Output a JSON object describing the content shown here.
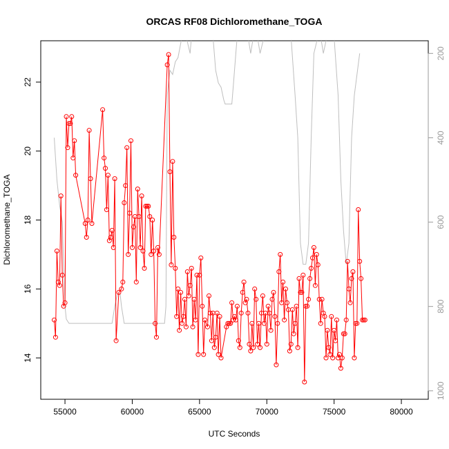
{
  "chart_data": {
    "type": "line",
    "title": "ORCAS RF08 Dichloromethane_TOGA",
    "xlabel": "UTC Seconds",
    "ylabel": "Dichloromethane_TOGA",
    "xlim": [
      53200,
      82000
    ],
    "ylim": [
      12.8,
      23.2
    ],
    "xticks": [
      55000,
      60000,
      65000,
      70000,
      75000,
      80000
    ],
    "yticks": [
      14,
      16,
      18,
      20,
      22
    ],
    "y2lim": [
      1020,
      170
    ],
    "y2ticks": [
      200,
      400,
      600,
      800,
      1000
    ],
    "grid": false,
    "colors": {
      "primary": "#ff0000",
      "secondary": "#bebebe"
    },
    "series": [
      {
        "style": "line+points",
        "color": "#ff0000",
        "points": [
          [
            54200,
            15.1
          ],
          [
            54300,
            14.6
          ],
          [
            54400,
            17.1
          ],
          [
            54500,
            16.2
          ],
          [
            54600,
            16.1
          ],
          [
            54700,
            18.7
          ],
          [
            54800,
            16.4
          ],
          [
            54900,
            15.5
          ],
          [
            55000,
            15.6
          ],
          [
            55100,
            21.0
          ],
          [
            55200,
            20.1
          ],
          [
            55300,
            20.8
          ],
          [
            55400,
            20.8
          ],
          [
            55500,
            21.0
          ],
          [
            55600,
            19.8
          ],
          [
            55700,
            20.3
          ],
          [
            55800,
            19.3
          ],
          [
            56500,
            17.9
          ],
          [
            56600,
            17.5
          ],
          [
            56700,
            18.0
          ],
          [
            56800,
            20.6
          ],
          [
            56900,
            19.2
          ],
          [
            57000,
            17.9
          ],
          [
            57800,
            21.2
          ],
          [
            57900,
            19.8
          ],
          [
            58000,
            19.5
          ],
          [
            58100,
            18.3
          ],
          [
            58200,
            19.3
          ],
          [
            58300,
            17.4
          ],
          [
            58400,
            17.5
          ],
          [
            58500,
            17.7
          ],
          [
            58600,
            17.2
          ],
          [
            58700,
            19.2
          ],
          [
            58800,
            14.5
          ],
          [
            59000,
            15.9
          ],
          [
            59200,
            16.0
          ],
          [
            59300,
            16.2
          ],
          [
            59400,
            18.5
          ],
          [
            59500,
            19.0
          ],
          [
            59600,
            20.1
          ],
          [
            59700,
            17.0
          ],
          [
            59800,
            18.2
          ],
          [
            59900,
            20.3
          ],
          [
            60000,
            17.2
          ],
          [
            60100,
            17.8
          ],
          [
            60200,
            18.1
          ],
          [
            60300,
            16.2
          ],
          [
            60400,
            18.9
          ],
          [
            60500,
            18.1
          ],
          [
            60600,
            17.2
          ],
          [
            60700,
            18.7
          ],
          [
            60800,
            17.1
          ],
          [
            60900,
            16.6
          ],
          [
            61000,
            18.4
          ],
          [
            61100,
            18.4
          ],
          [
            61200,
            18.4
          ],
          [
            61300,
            18.1
          ],
          [
            61400,
            17.0
          ],
          [
            61500,
            18.0
          ],
          [
            61600,
            17.1
          ],
          [
            61700,
            15.0
          ],
          [
            61800,
            14.6
          ],
          [
            61900,
            17.2
          ],
          [
            62000,
            17.0
          ],
          [
            62600,
            22.5
          ],
          [
            62700,
            22.8
          ],
          [
            62800,
            19.4
          ],
          [
            62900,
            16.7
          ],
          [
            63000,
            19.7
          ],
          [
            63100,
            17.5
          ],
          [
            63200,
            16.6
          ],
          [
            63300,
            15.2
          ],
          [
            63400,
            16.0
          ],
          [
            63500,
            14.8
          ],
          [
            63600,
            15.9
          ],
          [
            63700,
            15.0
          ],
          [
            63800,
            15.2
          ],
          [
            63900,
            15.7
          ],
          [
            64000,
            14.9
          ],
          [
            64100,
            16.5
          ],
          [
            64200,
            15.8
          ],
          [
            64300,
            16.1
          ],
          [
            64400,
            16.6
          ],
          [
            64500,
            14.9
          ],
          [
            64600,
            15.7
          ],
          [
            64700,
            15.1
          ],
          [
            64800,
            16.4
          ],
          [
            64900,
            14.1
          ],
          [
            65000,
            16.4
          ],
          [
            65100,
            16.9
          ],
          [
            65200,
            15.5
          ],
          [
            65300,
            14.1
          ],
          [
            65400,
            15.1
          ],
          [
            65600,
            14.9
          ],
          [
            65700,
            15.8
          ],
          [
            65800,
            15.3
          ],
          [
            65900,
            14.5
          ],
          [
            66000,
            15.3
          ],
          [
            66100,
            14.3
          ],
          [
            66200,
            14.6
          ],
          [
            66300,
            15.3
          ],
          [
            66400,
            14.1
          ],
          [
            66500,
            15.2
          ],
          [
            66600,
            14.0
          ],
          [
            67000,
            14.9
          ],
          [
            67100,
            15.0
          ],
          [
            67200,
            15.0
          ],
          [
            67300,
            15.0
          ],
          [
            67400,
            15.6
          ],
          [
            67500,
            15.1
          ],
          [
            67600,
            15.2
          ],
          [
            67700,
            15.1
          ],
          [
            67800,
            15.5
          ],
          [
            67900,
            14.5
          ],
          [
            68000,
            14.3
          ],
          [
            68100,
            15.3
          ],
          [
            68200,
            15.9
          ],
          [
            68300,
            16.2
          ],
          [
            68400,
            15.6
          ],
          [
            68500,
            15.7
          ],
          [
            68600,
            15.3
          ],
          [
            68700,
            14.4
          ],
          [
            68800,
            14.2
          ],
          [
            68900,
            15.0
          ],
          [
            69000,
            14.3
          ],
          [
            69100,
            16.0
          ],
          [
            69200,
            15.7
          ],
          [
            69300,
            14.4
          ],
          [
            69400,
            15.0
          ],
          [
            69500,
            14.3
          ],
          [
            69600,
            15.3
          ],
          [
            69700,
            15.8
          ],
          [
            69800,
            15.0
          ],
          [
            69900,
            15.3
          ],
          [
            70000,
            14.4
          ],
          [
            70100,
            15.5
          ],
          [
            70200,
            15.3
          ],
          [
            70300,
            14.8
          ],
          [
            70400,
            15.7
          ],
          [
            70500,
            15.9
          ],
          [
            70600,
            15.2
          ],
          [
            70700,
            13.8
          ],
          [
            70800,
            15.0
          ],
          [
            70900,
            16.5
          ],
          [
            71000,
            17.0
          ],
          [
            71100,
            15.6
          ],
          [
            71200,
            16.2
          ],
          [
            71300,
            15.1
          ],
          [
            71400,
            16.0
          ],
          [
            71500,
            15.6
          ],
          [
            71600,
            15.4
          ],
          [
            71700,
            14.2
          ],
          [
            71800,
            14.4
          ],
          [
            71900,
            15.4
          ],
          [
            72000,
            14.7
          ],
          [
            72100,
            15.0
          ],
          [
            72200,
            15.5
          ],
          [
            72300,
            14.3
          ],
          [
            72400,
            16.3
          ],
          [
            72500,
            15.9
          ],
          [
            72600,
            15.9
          ],
          [
            72700,
            16.4
          ],
          [
            72800,
            13.3
          ],
          [
            72900,
            15.5
          ],
          [
            73000,
            15.5
          ],
          [
            73100,
            15.7
          ],
          [
            73200,
            16.3
          ],
          [
            73300,
            16.6
          ],
          [
            73400,
            16.9
          ],
          [
            73500,
            17.2
          ],
          [
            73600,
            16.1
          ],
          [
            73700,
            17.0
          ],
          [
            73800,
            16.7
          ],
          [
            73900,
            15.7
          ],
          [
            74000,
            15.0
          ],
          [
            74100,
            15.7
          ],
          [
            74200,
            15.3
          ],
          [
            74300,
            15.2
          ],
          [
            74400,
            14.0
          ],
          [
            74500,
            14.8
          ],
          [
            74600,
            14.3
          ],
          [
            74700,
            14.1
          ],
          [
            74800,
            15.2
          ],
          [
            74900,
            14.0
          ],
          [
            75000,
            14.8
          ],
          [
            75100,
            14.5
          ],
          [
            75200,
            15.1
          ],
          [
            75300,
            14.0
          ],
          [
            75400,
            14.1
          ],
          [
            75500,
            13.7
          ],
          [
            75600,
            14.0
          ],
          [
            75700,
            14.7
          ],
          [
            75800,
            14.7
          ],
          [
            75900,
            15.1
          ],
          [
            76000,
            16.8
          ],
          [
            76100,
            16.0
          ],
          [
            76200,
            15.6
          ],
          [
            76300,
            16.3
          ],
          [
            76400,
            16.5
          ],
          [
            76500,
            14.0
          ],
          [
            76600,
            15.0
          ],
          [
            76700,
            15.0
          ],
          [
            76800,
            18.3
          ],
          [
            76900,
            16.8
          ],
          [
            77000,
            16.3
          ],
          [
            77100,
            15.1
          ],
          [
            77200,
            15.1
          ],
          [
            77300,
            15.1
          ]
        ]
      },
      {
        "style": "line",
        "color": "#bebebe",
        "points": [
          [
            54200,
            400
          ],
          [
            54400,
            500
          ],
          [
            54600,
            560
          ],
          [
            54800,
            600
          ],
          [
            54900,
            700
          ],
          [
            55000,
            800
          ],
          [
            55100,
            830
          ],
          [
            55300,
            840
          ],
          [
            56000,
            840
          ],
          [
            58500,
            840
          ],
          [
            58700,
            800
          ],
          [
            58900,
            770
          ],
          [
            59100,
            770
          ],
          [
            59200,
            800
          ],
          [
            59400,
            840
          ],
          [
            62400,
            840
          ],
          [
            62500,
            800
          ],
          [
            62600,
            300
          ],
          [
            62800,
            240
          ],
          [
            63000,
            250
          ],
          [
            63200,
            220
          ],
          [
            63400,
            210
          ],
          [
            63700,
            160
          ],
          [
            64000,
            160
          ],
          [
            64300,
            200
          ],
          [
            64400,
            160
          ],
          [
            64700,
            160
          ],
          [
            65100,
            165
          ],
          [
            65300,
            160
          ],
          [
            65600,
            160
          ],
          [
            66000,
            160
          ],
          [
            66200,
            240
          ],
          [
            66400,
            270
          ],
          [
            66600,
            280
          ],
          [
            66800,
            310
          ],
          [
            66900,
            320
          ],
          [
            67200,
            320
          ],
          [
            67300,
            320
          ],
          [
            67400,
            320
          ],
          [
            67500,
            280
          ],
          [
            67700,
            200
          ],
          [
            67800,
            160
          ],
          [
            68600,
            160
          ],
          [
            68800,
            200
          ],
          [
            69000,
            160
          ],
          [
            69300,
            160
          ],
          [
            69500,
            200
          ],
          [
            69800,
            160
          ],
          [
            71800,
            160
          ],
          [
            72100,
            300
          ],
          [
            72300,
            400
          ],
          [
            72500,
            650
          ],
          [
            72700,
            700
          ],
          [
            72900,
            700
          ],
          [
            73100,
            650
          ],
          [
            73300,
            400
          ],
          [
            73500,
            200
          ],
          [
            73800,
            160
          ],
          [
            74000,
            160
          ],
          [
            74200,
            200
          ],
          [
            74400,
            170
          ],
          [
            74700,
            160
          ],
          [
            75000,
            160
          ],
          [
            75300,
            300
          ],
          [
            75500,
            500
          ],
          [
            75700,
            620
          ],
          [
            75900,
            700
          ],
          [
            76100,
            650
          ],
          [
            76300,
            400
          ],
          [
            76500,
            300
          ],
          [
            76700,
            250
          ],
          [
            76900,
            200
          ]
        ]
      }
    ]
  }
}
